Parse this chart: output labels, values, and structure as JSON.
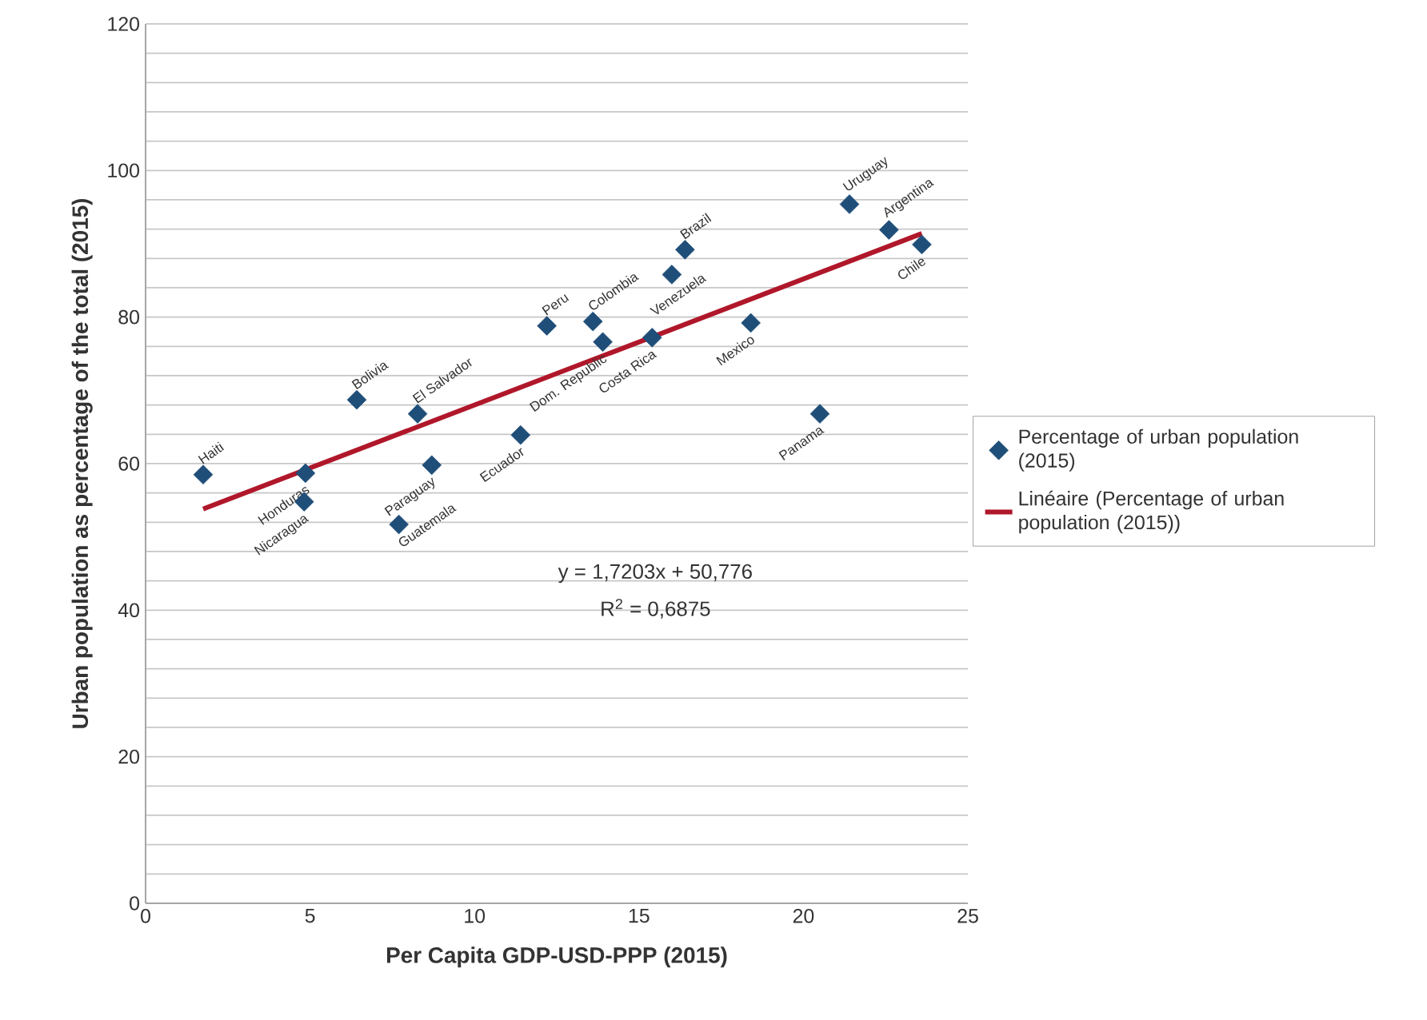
{
  "chart_data": {
    "type": "scatter",
    "xlabel": "Per Capita GDP-USD-PPP (2015)",
    "ylabel": "Urban population as percentage of the total (2015)",
    "xlim": [
      0,
      25
    ],
    "xticks": [
      0,
      5,
      10,
      15,
      20,
      25
    ],
    "ylim": [
      0,
      120
    ],
    "yticks": [
      0,
      {
        "value": 4,
        "label": null
      },
      {
        "value": 8,
        "label": null
      },
      {
        "value": 12,
        "label": null
      },
      {
        "value": 16,
        "label": null
      },
      20,
      {
        "value": 24,
        "label": null
      },
      {
        "value": 28,
        "label": null
      },
      {
        "value": 32,
        "label": null
      },
      {
        "value": 36,
        "label": null
      },
      40,
      {
        "value": 44,
        "label": null
      },
      {
        "value": 48,
        "label": null
      },
      {
        "value": 52,
        "label": null
      },
      {
        "value": 56,
        "label": null
      },
      60,
      {
        "value": 64,
        "label": null
      },
      {
        "value": 68,
        "label": null
      },
      {
        "value": 72,
        "label": null
      },
      {
        "value": 76,
        "label": null
      },
      80,
      {
        "value": 84,
        "label": null
      },
      {
        "value": 88,
        "label": null
      },
      {
        "value": 92,
        "label": null
      },
      {
        "value": 96,
        "label": null
      },
      100,
      {
        "value": 104,
        "label": null
      },
      {
        "value": 108,
        "label": null
      },
      {
        "value": 112,
        "label": null
      },
      {
        "value": 116,
        "label": null
      },
      120
    ],
    "grid": "y",
    "legend": "right",
    "marker": "diamond",
    "series": [
      {
        "name": "Percentage of urban population (2015)",
        "color": "#1f4e79",
        "x": [
          1.75,
          4.86,
          4.82,
          6.42,
          8.27,
          8.7,
          7.7,
          11.4,
          12.2,
          13.6,
          13.9,
          15.4,
          16.0,
          16.4,
          18.4,
          20.5,
          21.4,
          22.6,
          23.6
        ],
        "values": [
          58.5,
          58.7,
          54.8,
          68.7,
          66.8,
          59.8,
          51.7,
          63.9,
          78.8,
          79.4,
          76.6,
          77.2,
          85.8,
          89.2,
          79.2,
          66.8,
          95.4,
          91.9,
          89.9
        ]
      },
      {
        "name": "Linéaire (Percentage of urban population (2015))",
        "type": "line",
        "marker": "none",
        "color": "#b0172a",
        "x": [
          1.75,
          23.6
        ],
        "values": [
          53.8,
          91.4
        ]
      }
    ],
    "annotations": [
      {
        "text": "Haiti",
        "x": 1.75,
        "y": 58.5
      },
      {
        "text": "Honduras",
        "x": 4.86,
        "y": 58.7
      },
      {
        "text": "Nicaragua",
        "x": 4.82,
        "y": 54.8
      },
      {
        "text": "Bolivia",
        "x": 6.42,
        "y": 68.7
      },
      {
        "text": "El Salvador",
        "x": 8.27,
        "y": 66.8
      },
      {
        "text": "Paraguay",
        "x": 8.7,
        "y": 59.8
      },
      {
        "text": "Guatemala",
        "x": 7.7,
        "y": 51.7
      },
      {
        "text": "Ecuador",
        "x": 11.4,
        "y": 63.9
      },
      {
        "text": "Peru",
        "x": 12.2,
        "y": 78.8
      },
      {
        "text": "Colombia",
        "x": 13.6,
        "y": 79.4
      },
      {
        "text": "Dom. Republic",
        "x": 13.9,
        "y": 76.6
      },
      {
        "text": "Costa Rica",
        "x": 15.4,
        "y": 77.2
      },
      {
        "text": "Venezuela",
        "x": 16.0,
        "y": 85.8
      },
      {
        "text": "Brazil",
        "x": 16.4,
        "y": 89.2
      },
      {
        "text": "Mexico",
        "x": 18.4,
        "y": 79.2
      },
      {
        "text": "Panama",
        "x": 20.5,
        "y": 66.8
      },
      {
        "text": "Uruguay",
        "x": 21.4,
        "y": 95.4
      },
      {
        "text": "Argentina",
        "x": 22.6,
        "y": 91.9
      },
      {
        "text": "Chile",
        "x": 23.6,
        "y": 89.9
      },
      "y = 1,7203x + 50,776",
      "R$^{2}$ = 0,6875"
    ]
  }
}
